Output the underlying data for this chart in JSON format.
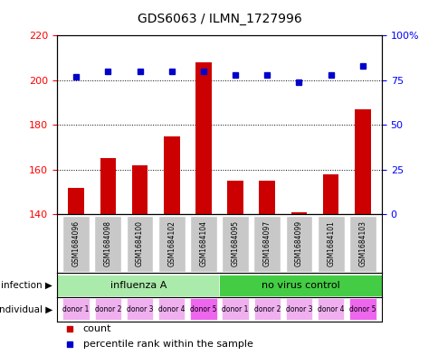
{
  "title": "GDS6063 / ILMN_1727996",
  "samples": [
    "GSM1684096",
    "GSM1684098",
    "GSM1684100",
    "GSM1684102",
    "GSM1684104",
    "GSM1684095",
    "GSM1684097",
    "GSM1684099",
    "GSM1684101",
    "GSM1684103"
  ],
  "counts": [
    152,
    165,
    162,
    175,
    208,
    155,
    155,
    141,
    158,
    187
  ],
  "percentiles": [
    77,
    80,
    80,
    80,
    80,
    78,
    78,
    74,
    78,
    83
  ],
  "ylim_left": [
    140,
    220
  ],
  "ylim_right": [
    0,
    100
  ],
  "yticks_left": [
    140,
    160,
    180,
    200,
    220
  ],
  "yticks_right": [
    0,
    25,
    50,
    75,
    100
  ],
  "ytick_labels_right": [
    "0",
    "25",
    "50",
    "75",
    "100%"
  ],
  "bar_color": "#cc0000",
  "dot_color": "#0000cc",
  "infection_groups": [
    {
      "label": "influenza A",
      "start": 0,
      "end": 5,
      "color": "#aaeaaa"
    },
    {
      "label": "no virus control",
      "start": 5,
      "end": 10,
      "color": "#44cc44"
    }
  ],
  "individual_labels": [
    "donor 1",
    "donor 2",
    "donor 3",
    "donor 4",
    "donor 5",
    "donor 1",
    "donor 2",
    "donor 3",
    "donor 4",
    "donor 5"
  ],
  "ind_colors": [
    "#f0b0f0",
    "#f0b0f0",
    "#f0b0f0",
    "#f0b0f0",
    "#ee66ee",
    "#f0b0f0",
    "#f0b0f0",
    "#f0b0f0",
    "#f0b0f0",
    "#ee66ee"
  ],
  "infection_label": "infection",
  "individual_label": "individual",
  "legend_count_color": "#cc0000",
  "legend_dot_color": "#0000cc",
  "bg_color": "#ffffff",
  "plot_bg_color": "#ffffff",
  "sample_box_color": "#c8c8c8"
}
